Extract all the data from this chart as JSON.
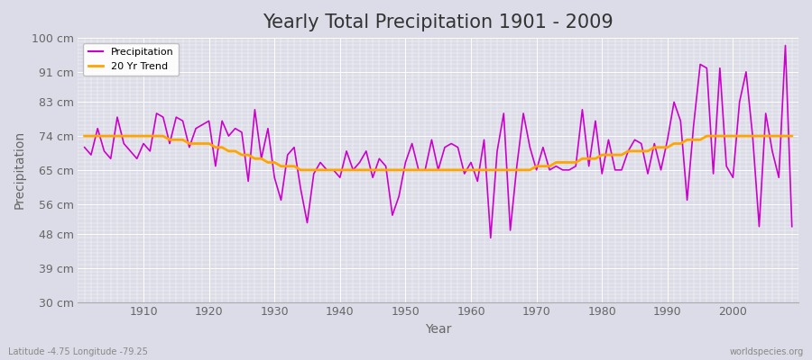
{
  "title": "Yearly Total Precipitation 1901 - 2009",
  "xlabel": "Year",
  "ylabel": "Precipitation",
  "years": [
    1901,
    1902,
    1903,
    1904,
    1905,
    1906,
    1907,
    1908,
    1909,
    1910,
    1911,
    1912,
    1913,
    1914,
    1915,
    1916,
    1917,
    1918,
    1919,
    1920,
    1921,
    1922,
    1923,
    1924,
    1925,
    1926,
    1927,
    1928,
    1929,
    1930,
    1931,
    1932,
    1933,
    1934,
    1935,
    1936,
    1937,
    1938,
    1939,
    1940,
    1941,
    1942,
    1943,
    1944,
    1945,
    1946,
    1947,
    1948,
    1949,
    1950,
    1951,
    1952,
    1953,
    1954,
    1955,
    1956,
    1957,
    1958,
    1959,
    1960,
    1961,
    1962,
    1963,
    1964,
    1965,
    1966,
    1967,
    1968,
    1969,
    1970,
    1971,
    1972,
    1973,
    1974,
    1975,
    1976,
    1977,
    1978,
    1979,
    1980,
    1981,
    1982,
    1983,
    1984,
    1985,
    1986,
    1987,
    1988,
    1989,
    1990,
    1991,
    1992,
    1993,
    1994,
    1995,
    1996,
    1997,
    1998,
    1999,
    2000,
    2001,
    2002,
    2003,
    2004,
    2005,
    2006,
    2007,
    2008,
    2009
  ],
  "precipitation": [
    71,
    69,
    76,
    70,
    68,
    79,
    72,
    70,
    68,
    72,
    70,
    80,
    79,
    72,
    79,
    78,
    71,
    76,
    77,
    78,
    66,
    78,
    74,
    76,
    75,
    62,
    81,
    68,
    76,
    63,
    57,
    69,
    71,
    60,
    51,
    64,
    67,
    65,
    65,
    63,
    70,
    65,
    67,
    70,
    63,
    68,
    66,
    53,
    58,
    67,
    72,
    65,
    65,
    73,
    65,
    71,
    72,
    71,
    64,
    67,
    62,
    73,
    47,
    70,
    80,
    49,
    66,
    80,
    71,
    65,
    71,
    65,
    66,
    65,
    65,
    66,
    81,
    66,
    78,
    64,
    73,
    65,
    65,
    70,
    73,
    72,
    64,
    72,
    65,
    73,
    83,
    78,
    57,
    77,
    93,
    92,
    64,
    92,
    66,
    63,
    83,
    91,
    74,
    50,
    80,
    70,
    63,
    98,
    50
  ],
  "trend": [
    74,
    74,
    74,
    74,
    74,
    74,
    74,
    74,
    74,
    74,
    74,
    74,
    74,
    73,
    73,
    73,
    72,
    72,
    72,
    72,
    71,
    71,
    70,
    70,
    69,
    69,
    68,
    68,
    67,
    67,
    66,
    66,
    66,
    65,
    65,
    65,
    65,
    65,
    65,
    65,
    65,
    65,
    65,
    65,
    65,
    65,
    65,
    65,
    65,
    65,
    65,
    65,
    65,
    65,
    65,
    65,
    65,
    65,
    65,
    65,
    65,
    65,
    65,
    65,
    65,
    65,
    65,
    65,
    65,
    66,
    66,
    66,
    67,
    67,
    67,
    67,
    68,
    68,
    68,
    69,
    69,
    69,
    69,
    70,
    70,
    70,
    70,
    71,
    71,
    71,
    72,
    72,
    73,
    73,
    73,
    74,
    74,
    74,
    74,
    74,
    74,
    74,
    74,
    74,
    74,
    74,
    74,
    74,
    74
  ],
  "precip_color": "#cc00cc",
  "trend_color": "#FFA500",
  "bg_color": "#dcdce8",
  "plot_bg_color": "#dcdce8",
  "grid_color": "#ffffff",
  "ylim": [
    30,
    100
  ],
  "yticks": [
    30,
    39,
    48,
    56,
    65,
    74,
    83,
    91,
    100
  ],
  "ytick_labels": [
    "30 cm",
    "39 cm",
    "48 cm",
    "56 cm",
    "65 cm",
    "74 cm",
    "83 cm",
    "91 cm",
    "100 cm"
  ],
  "xticks": [
    1910,
    1920,
    1930,
    1940,
    1950,
    1960,
    1970,
    1980,
    1990,
    2000
  ],
  "xlim_left": 1900,
  "xlim_right": 2010,
  "lat_lon_label": "Latitude -4.75 Longitude -79.25",
  "watermark": "worldspecies.org",
  "legend_labels": [
    "Precipitation",
    "20 Yr Trend"
  ],
  "title_fontsize": 15,
  "axis_label_fontsize": 10,
  "tick_fontsize": 9
}
